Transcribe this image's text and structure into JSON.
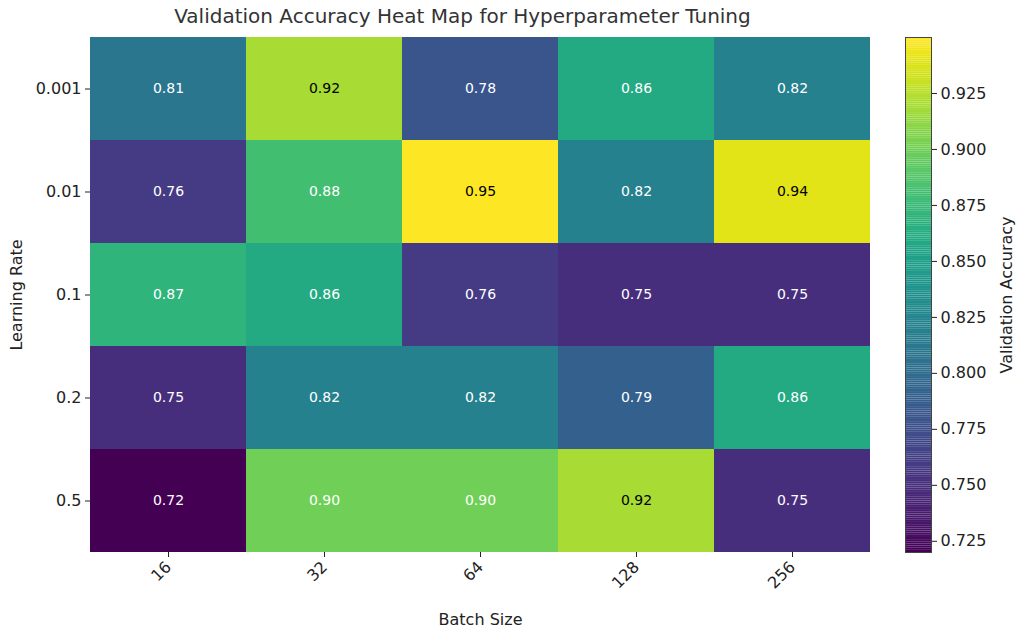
{
  "chart_data": {
    "type": "heatmap",
    "title": "Validation Accuracy Heat Map for Hyperparameter Tuning",
    "x_label": "Batch Size",
    "y_label": "Learning Rate",
    "x_categories": [
      "16",
      "32",
      "64",
      "128",
      "256"
    ],
    "y_categories": [
      "0.001",
      "0.01",
      "0.1",
      "0.2",
      "0.5"
    ],
    "values": [
      [
        0.81,
        0.92,
        0.78,
        0.86,
        0.82
      ],
      [
        0.76,
        0.88,
        0.95,
        0.82,
        0.94
      ],
      [
        0.87,
        0.86,
        0.76,
        0.75,
        0.75
      ],
      [
        0.75,
        0.82,
        0.82,
        0.79,
        0.86
      ],
      [
        0.72,
        0.9,
        0.9,
        0.92,
        0.75
      ]
    ],
    "value_labels": [
      [
        "0.81",
        "0.92",
        "0.78",
        "0.86",
        "0.82"
      ],
      [
        "0.76",
        "0.88",
        "0.95",
        "0.82",
        "0.94"
      ],
      [
        "0.87",
        "0.86",
        "0.76",
        "0.75",
        "0.75"
      ],
      [
        "0.75",
        "0.82",
        "0.82",
        "0.79",
        "0.86"
      ],
      [
        "0.72",
        "0.90",
        "0.90",
        "0.92",
        "0.75"
      ]
    ],
    "data_labels": true,
    "color": "viridis",
    "colorbar": {
      "label": "Validation Accuracy",
      "range": [
        0.72,
        0.95
      ],
      "ticks": [
        0.725,
        {
          "value": 0.75,
          "label": "0.750"
        },
        0.775,
        {
          "value": 0.8,
          "label": "0.800"
        },
        0.825,
        {
          "value": 0.85,
          "label": "0.850"
        },
        0.875,
        {
          "value": 0.9,
          "label": "0.900"
        },
        0.925
      ]
    }
  }
}
